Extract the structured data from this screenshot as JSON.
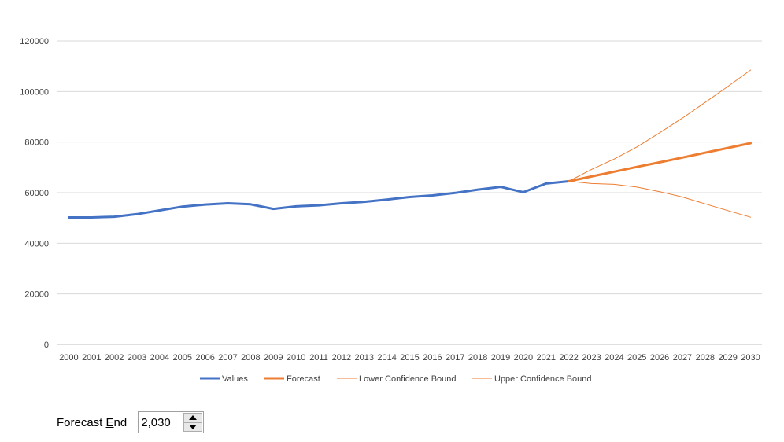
{
  "chart_data": {
    "type": "line",
    "title": "",
    "xlabel": "",
    "ylabel": "",
    "x": [
      2000,
      2001,
      2002,
      2003,
      2004,
      2005,
      2006,
      2007,
      2008,
      2009,
      2010,
      2011,
      2012,
      2013,
      2014,
      2015,
      2016,
      2017,
      2018,
      2019,
      2020,
      2021,
      2022,
      2023,
      2024,
      2025,
      2026,
      2027,
      2028,
      2029,
      2030
    ],
    "ylim": [
      0,
      120000
    ],
    "yticks": [
      0,
      20000,
      40000,
      60000,
      80000,
      100000,
      120000
    ],
    "grid": true,
    "legend_position": "bottom",
    "series": [
      {
        "name": "Values",
        "color": "#4472C4",
        "x": [
          2000,
          2001,
          2002,
          2003,
          2004,
          2005,
          2006,
          2007,
          2008,
          2009,
          2010,
          2011,
          2012,
          2013,
          2014,
          2015,
          2016,
          2017,
          2018,
          2019,
          2020,
          2021,
          2022
        ],
        "values": [
          50200,
          50200,
          50500,
          51500,
          53000,
          54500,
          55300,
          55800,
          55400,
          53600,
          54600,
          55000,
          55800,
          56400,
          57300,
          58300,
          58900,
          59900,
          61200,
          62300,
          60200,
          63600,
          64500
        ]
      },
      {
        "name": "Forecast",
        "color": "#ED7D31",
        "x": [
          2022,
          2023,
          2024,
          2025,
          2026,
          2027,
          2028,
          2029,
          2030
        ],
        "values": [
          64500,
          66400,
          68300,
          70200,
          72000,
          73900,
          75800,
          77700,
          79600
        ]
      },
      {
        "name": "Lower Confidence Bound",
        "color": "#ED7D31",
        "x": [
          2022,
          2023,
          2024,
          2025,
          2026,
          2027,
          2028,
          2029,
          2030
        ],
        "values": [
          64500,
          63600,
          63300,
          62200,
          60400,
          58300,
          55600,
          52900,
          50300
        ]
      },
      {
        "name": "Upper Confidence Bound",
        "color": "#ED7D31",
        "x": [
          2022,
          2023,
          2024,
          2025,
          2026,
          2027,
          2028,
          2029,
          2030
        ],
        "values": [
          64500,
          69200,
          73300,
          78100,
          83700,
          89500,
          95700,
          102000,
          108500
        ]
      }
    ]
  },
  "forecast_end": {
    "label_before": "Forecast ",
    "label_underlined": "E",
    "label_after": "nd",
    "value": "2,030"
  }
}
